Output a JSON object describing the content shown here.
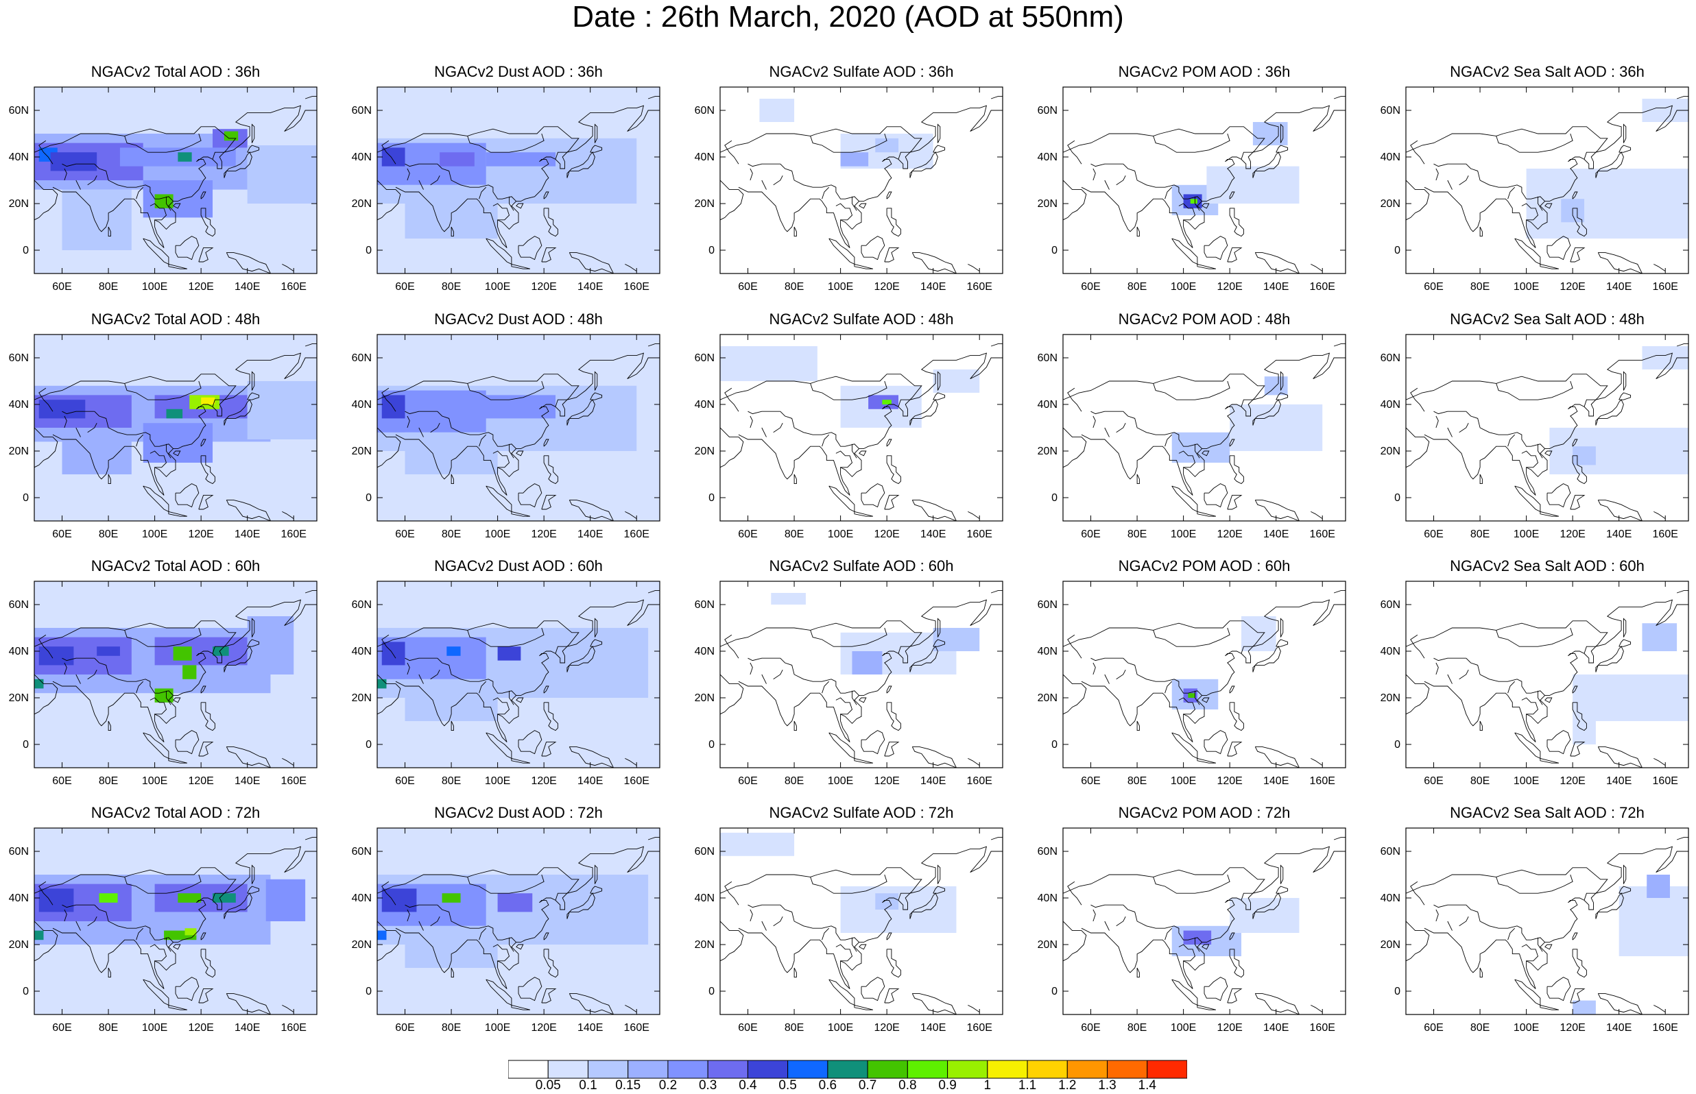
{
  "figure": {
    "title": "Date : 26th March, 2020 (AOD at 550nm)"
  },
  "map": {
    "lon_range": [
      48,
      170
    ],
    "lat_range": [
      -10,
      70
    ],
    "lon_ticks": [
      60,
      80,
      100,
      120,
      140,
      160
    ],
    "lon_tick_labels": [
      "60E",
      "80E",
      "100E",
      "120E",
      "140E",
      "160E"
    ],
    "lat_ticks": [
      0,
      20,
      40,
      60
    ],
    "lat_tick_labels": [
      "0",
      "20N",
      "40N",
      "60N"
    ],
    "coastline_color": "#000000"
  },
  "panels": [
    [
      {
        "title": "NGACv2 Total AOD : 36h",
        "species": "total",
        "lead": "36h"
      },
      {
        "title": "NGACv2 Dust AOD : 36h",
        "species": "dust",
        "lead": "36h"
      },
      {
        "title": "NGACv2 Sulfate AOD : 36h",
        "species": "sulfate",
        "lead": "36h"
      },
      {
        "title": "NGACv2 POM AOD : 36h",
        "species": "pom",
        "lead": "36h"
      },
      {
        "title": "NGACv2 Sea Salt AOD : 36h",
        "species": "seasalt",
        "lead": "36h"
      }
    ],
    [
      {
        "title": "NGACv2 Total AOD : 48h",
        "species": "total",
        "lead": "48h"
      },
      {
        "title": "NGACv2 Dust AOD : 48h",
        "species": "dust",
        "lead": "48h"
      },
      {
        "title": "NGACv2 Sulfate AOD : 48h",
        "species": "sulfate",
        "lead": "48h"
      },
      {
        "title": "NGACv2 POM AOD : 48h",
        "species": "pom",
        "lead": "48h"
      },
      {
        "title": "NGACv2 Sea Salt AOD : 48h",
        "species": "seasalt",
        "lead": "48h"
      }
    ],
    [
      {
        "title": "NGACv2 Total AOD : 60h",
        "species": "total",
        "lead": "60h"
      },
      {
        "title": "NGACv2 Dust AOD : 60h",
        "species": "dust",
        "lead": "60h"
      },
      {
        "title": "NGACv2 Sulfate AOD : 60h",
        "species": "sulfate",
        "lead": "60h"
      },
      {
        "title": "NGACv2 POM AOD : 60h",
        "species": "pom",
        "lead": "60h"
      },
      {
        "title": "NGACv2 Sea Salt AOD : 60h",
        "species": "seasalt",
        "lead": "60h"
      }
    ],
    [
      {
        "title": "NGACv2 Total AOD : 72h",
        "species": "total",
        "lead": "72h"
      },
      {
        "title": "NGACv2 Dust AOD : 72h",
        "species": "dust",
        "lead": "72h"
      },
      {
        "title": "NGACv2 Sulfate AOD : 72h",
        "species": "sulfate",
        "lead": "72h"
      },
      {
        "title": "NGACv2 POM AOD : 72h",
        "species": "pom",
        "lead": "72h"
      },
      {
        "title": "NGACv2 Sea Salt  AOD : 72h",
        "species": "seasalt",
        "lead": "72h"
      }
    ]
  ],
  "colorbar": {
    "labels": [
      "0.05",
      "0.1",
      "0.15",
      "0.2",
      "0.3",
      "0.4",
      "0.5",
      "0.6",
      "0.7",
      "0.8",
      "0.9",
      "1",
      "1.1",
      "1.2",
      "1.3",
      "1.4"
    ],
    "colors": [
      "#ffffff",
      "#d6e2ff",
      "#b5c9ff",
      "#9cb0ff",
      "#8092ff",
      "#6e6cf0",
      "#3c44d8",
      "#0f68ff",
      "#10907a",
      "#43c400",
      "#5ef000",
      "#99f000",
      "#f6f000",
      "#ffd200",
      "#ff9600",
      "#ff6a00",
      "#ff2a00"
    ]
  },
  "aod_blobs": {
    "total": {
      "36h": [
        [
          48,
          170,
          -10,
          70,
          0.06
        ],
        [
          48,
          140,
          26,
          50,
          0.15
        ],
        [
          48,
          95,
          30,
          46,
          0.3
        ],
        [
          50,
          58,
          38,
          44,
          0.55
        ],
        [
          55,
          75,
          34,
          42,
          0.4
        ],
        [
          85,
          135,
          36,
          44,
          0.25
        ],
        [
          95,
          125,
          14,
          30,
          0.25
        ],
        [
          100,
          108,
          18,
          24,
          0.75
        ],
        [
          125,
          140,
          44,
          52,
          0.3
        ],
        [
          130,
          136,
          47,
          51,
          0.7
        ],
        [
          110,
          116,
          38,
          42,
          0.6
        ],
        [
          60,
          90,
          0,
          26,
          0.12
        ],
        [
          140,
          170,
          20,
          45,
          0.12
        ]
      ],
      "48h": [
        [
          48,
          170,
          -10,
          70,
          0.06
        ],
        [
          48,
          150,
          24,
          48,
          0.15
        ],
        [
          48,
          90,
          30,
          44,
          0.3
        ],
        [
          50,
          70,
          34,
          42,
          0.4
        ],
        [
          100,
          140,
          34,
          44,
          0.3
        ],
        [
          115,
          128,
          38,
          44,
          0.9
        ],
        [
          120,
          126,
          40,
          43,
          1.0
        ],
        [
          105,
          112,
          34,
          38,
          0.6
        ],
        [
          95,
          125,
          15,
          32,
          0.25
        ],
        [
          60,
          90,
          10,
          26,
          0.15
        ],
        [
          140,
          170,
          25,
          50,
          0.12
        ]
      ],
      "60h": [
        [
          48,
          170,
          -10,
          70,
          0.07
        ],
        [
          48,
          150,
          22,
          50,
          0.18
        ],
        [
          48,
          90,
          30,
          46,
          0.3
        ],
        [
          50,
          65,
          34,
          42,
          0.45
        ],
        [
          75,
          85,
          38,
          42,
          0.45
        ],
        [
          100,
          140,
          34,
          46,
          0.3
        ],
        [
          108,
          116,
          36,
          42,
          0.7
        ],
        [
          112,
          118,
          28,
          34,
          0.7
        ],
        [
          100,
          108,
          18,
          24,
          0.7
        ],
        [
          125,
          132,
          38,
          42,
          0.6
        ],
        [
          48,
          52,
          24,
          28,
          0.6
        ],
        [
          140,
          160,
          30,
          55,
          0.15
        ]
      ],
      "72h": [
        [
          48,
          170,
          -10,
          70,
          0.07
        ],
        [
          48,
          150,
          20,
          50,
          0.18
        ],
        [
          48,
          90,
          30,
          46,
          0.3
        ],
        [
          50,
          65,
          34,
          44,
          0.45
        ],
        [
          76,
          84,
          38,
          42,
          0.8
        ],
        [
          100,
          140,
          34,
          46,
          0.3
        ],
        [
          110,
          120,
          38,
          42,
          0.7
        ],
        [
          125,
          135,
          38,
          42,
          0.6
        ],
        [
          104,
          118,
          22,
          26,
          0.75
        ],
        [
          113,
          118,
          24,
          27,
          0.9
        ],
        [
          48,
          52,
          22,
          26,
          0.6
        ],
        [
          148,
          165,
          30,
          48,
          0.2
        ]
      ]
    },
    "dust": {
      "36h": [
        [
          48,
          170,
          -10,
          70,
          0.05
        ],
        [
          48,
          160,
          20,
          48,
          0.12
        ],
        [
          48,
          95,
          28,
          46,
          0.25
        ],
        [
          50,
          60,
          36,
          44,
          0.45
        ],
        [
          75,
          90,
          36,
          42,
          0.35
        ],
        [
          95,
          125,
          36,
          42,
          0.2
        ],
        [
          60,
          100,
          5,
          28,
          0.12
        ]
      ],
      "48h": [
        [
          48,
          170,
          -10,
          70,
          0.05
        ],
        [
          48,
          160,
          20,
          48,
          0.12
        ],
        [
          48,
          95,
          28,
          46,
          0.25
        ],
        [
          50,
          60,
          34,
          44,
          0.4
        ],
        [
          90,
          125,
          34,
          44,
          0.2
        ],
        [
          60,
          100,
          10,
          28,
          0.12
        ]
      ],
      "60h": [
        [
          48,
          170,
          -10,
          70,
          0.05
        ],
        [
          48,
          165,
          20,
          50,
          0.12
        ],
        [
          48,
          95,
          28,
          46,
          0.25
        ],
        [
          50,
          60,
          34,
          44,
          0.45
        ],
        [
          78,
          84,
          38,
          42,
          0.5
        ],
        [
          100,
          110,
          36,
          42,
          0.45
        ],
        [
          48,
          52,
          24,
          28,
          0.6
        ],
        [
          60,
          100,
          10,
          28,
          0.12
        ]
      ],
      "72h": [
        [
          48,
          170,
          -10,
          70,
          0.05
        ],
        [
          48,
          165,
          20,
          50,
          0.12
        ],
        [
          48,
          95,
          28,
          46,
          0.25
        ],
        [
          50,
          65,
          34,
          44,
          0.45
        ],
        [
          76,
          84,
          38,
          42,
          0.7
        ],
        [
          100,
          115,
          34,
          42,
          0.3
        ],
        [
          48,
          52,
          22,
          26,
          0.5
        ],
        [
          60,
          100,
          10,
          28,
          0.12
        ]
      ]
    },
    "sulfate": {
      "36h": [
        [
          65,
          80,
          55,
          65,
          0.06
        ],
        [
          100,
          140,
          35,
          50,
          0.06
        ],
        [
          100,
          112,
          36,
          42,
          0.15
        ],
        [
          115,
          125,
          42,
          48,
          0.12
        ]
      ],
      "48h": [
        [
          48,
          90,
          50,
          65,
          0.06
        ],
        [
          100,
          135,
          30,
          48,
          0.08
        ],
        [
          112,
          125,
          38,
          44,
          0.3
        ],
        [
          118,
          122,
          40,
          42,
          0.8
        ],
        [
          140,
          160,
          45,
          55,
          0.08
        ]
      ],
      "60h": [
        [
          70,
          85,
          60,
          65,
          0.06
        ],
        [
          100,
          150,
          30,
          48,
          0.08
        ],
        [
          105,
          118,
          30,
          40,
          0.18
        ],
        [
          140,
          160,
          40,
          50,
          0.1
        ]
      ],
      "72h": [
        [
          48,
          80,
          58,
          68,
          0.06
        ],
        [
          100,
          150,
          25,
          45,
          0.08
        ],
        [
          115,
          125,
          35,
          42,
          0.12
        ]
      ]
    },
    "pom": {
      "36h": [
        [
          95,
          115,
          15,
          28,
          0.12
        ],
        [
          100,
          108,
          18,
          24,
          0.4
        ],
        [
          103,
          106,
          20,
          22,
          0.8
        ],
        [
          110,
          150,
          20,
          36,
          0.08
        ],
        [
          130,
          145,
          45,
          55,
          0.1
        ]
      ],
      "48h": [
        [
          95,
          120,
          15,
          28,
          0.1
        ],
        [
          120,
          160,
          20,
          40,
          0.08
        ],
        [
          135,
          145,
          44,
          52,
          0.12
        ]
      ],
      "60h": [
        [
          95,
          115,
          15,
          28,
          0.12
        ],
        [
          100,
          106,
          18,
          24,
          0.35
        ],
        [
          102,
          105,
          20,
          22,
          0.7
        ],
        [
          125,
          140,
          40,
          55,
          0.08
        ]
      ],
      "72h": [
        [
          95,
          125,
          15,
          28,
          0.12
        ],
        [
          100,
          112,
          20,
          26,
          0.35
        ],
        [
          120,
          150,
          25,
          40,
          0.08
        ]
      ]
    },
    "seasalt": {
      "36h": [
        [
          100,
          170,
          5,
          35,
          0.06
        ],
        [
          115,
          125,
          12,
          22,
          0.12
        ],
        [
          150,
          170,
          55,
          65,
          0.08
        ]
      ],
      "48h": [
        [
          110,
          170,
          10,
          30,
          0.06
        ],
        [
          120,
          130,
          14,
          22,
          0.12
        ],
        [
          150,
          170,
          55,
          65,
          0.08
        ]
      ],
      "60h": [
        [
          120,
          170,
          10,
          30,
          0.06
        ],
        [
          150,
          165,
          40,
          52,
          0.12
        ],
        [
          120,
          130,
          0,
          10,
          0.08
        ]
      ],
      "72h": [
        [
          140,
          170,
          15,
          45,
          0.07
        ],
        [
          152,
          162,
          40,
          50,
          0.15
        ],
        [
          120,
          130,
          -10,
          -4,
          0.1
        ]
      ]
    }
  }
}
